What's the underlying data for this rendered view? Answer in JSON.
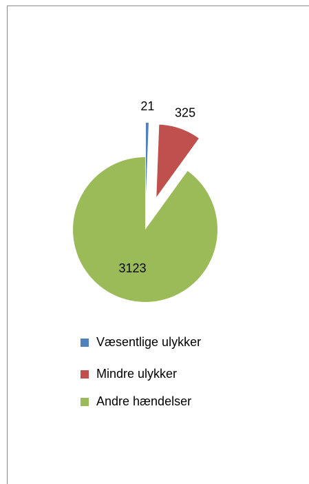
{
  "chart_data": {
    "type": "pie",
    "categories": [
      "Væsentlige ulykker",
      "Mindre ulykker",
      "Andre hændelser"
    ],
    "values": [
      21,
      325,
      3123
    ],
    "colors": [
      "#4f81bd",
      "#c0504d",
      "#9bbb59"
    ],
    "exploded": [
      true,
      true,
      false
    ]
  }
}
